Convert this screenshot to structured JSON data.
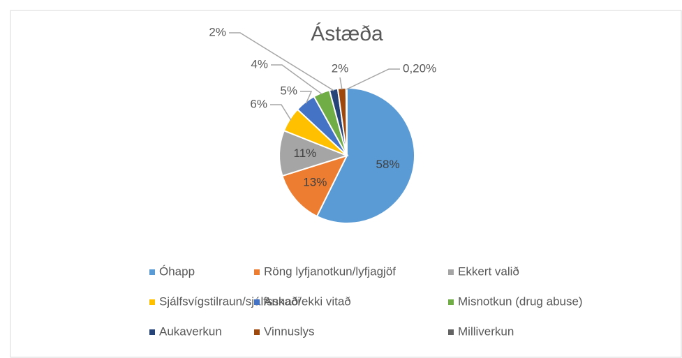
{
  "chart_data": {
    "type": "pie",
    "title": "Ástæða",
    "categories": [
      "Óhapp",
      "Röng lyfjanotkun/lyfjagjöf",
      "Ekkert valið",
      "Sjálfsvígstilraun/sjálfsskaði",
      "Annað/ekki vitað",
      "Misnotkun (drug abuse)",
      "Aukaverkun",
      "Vinnuslys",
      "Milliverkun"
    ],
    "values": [
      58,
      13,
      11,
      6,
      5,
      4,
      2,
      2,
      0.2
    ],
    "value_labels": [
      "58%",
      "13%",
      "11%",
      "6%",
      "5%",
      "4%",
      "2%",
      "2%",
      "0,20%"
    ],
    "colors": [
      "#5b9bd5",
      "#ed7d31",
      "#a5a5a5",
      "#ffc000",
      "#4472c4",
      "#70ad47",
      "#264478",
      "#9e480e",
      "#636363"
    ],
    "legend": "bottom"
  }
}
